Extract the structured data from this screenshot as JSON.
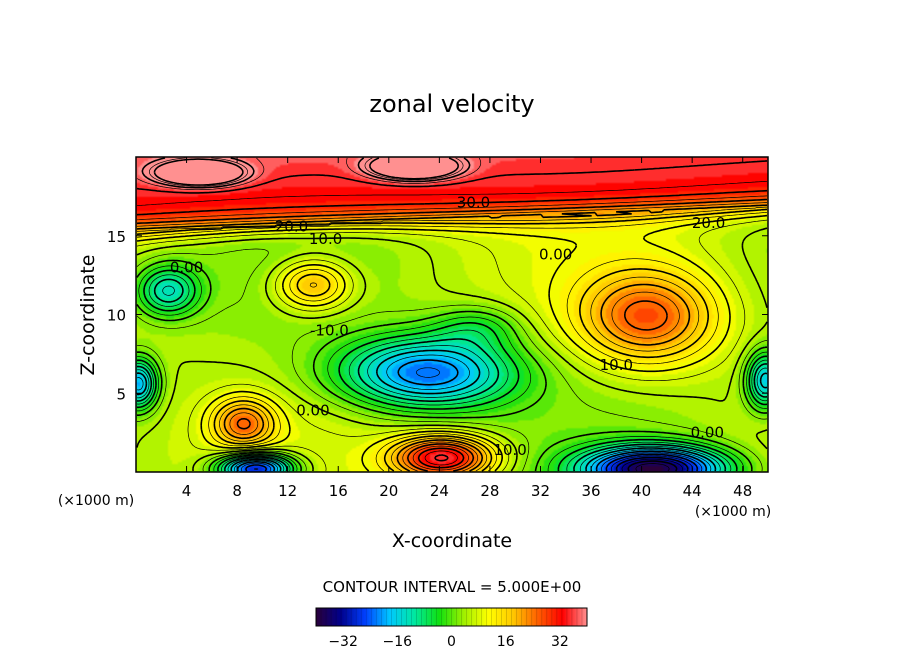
{
  "chart_data": {
    "type": "heatmap",
    "title": "zonal velocity",
    "xlabel": "X-coordinate",
    "ylabel": "Z-coordinate",
    "x_unit": "(×1000 m)",
    "z_unit": "(×1000 m)",
    "xlim": [
      0,
      50
    ],
    "zlim": [
      0,
      20
    ],
    "x_ticks": [
      4,
      8,
      12,
      16,
      20,
      24,
      28,
      32,
      36,
      40,
      44,
      48
    ],
    "z_ticks": [
      5,
      10,
      15
    ],
    "contour_interval_text": "CONTOUR INTERVAL = 5.000E+00",
    "contour_interval": 5.0,
    "colorbar": {
      "range": [
        -40,
        40
      ],
      "ticks": [
        -32,
        -16,
        0,
        16,
        32
      ],
      "colors": [
        "#2a003a",
        "#00008c",
        "#0040ff",
        "#00c8ff",
        "#00e8a0",
        "#10e010",
        "#a0f000",
        "#ffff00",
        "#ffc800",
        "#ff6000",
        "#ff0000",
        "#ff9090"
      ]
    },
    "contour_labels": [
      {
        "text": "30.0",
        "x": 26.7,
        "z": 17.1
      },
      {
        "text": "20.0",
        "x": 12.3,
        "z": 15.6
      },
      {
        "text": "20.0",
        "x": 45.3,
        "z": 15.8
      },
      {
        "text": "10.0",
        "x": 15.0,
        "z": 14.8
      },
      {
        "text": "0.00",
        "x": 4.0,
        "z": 13.0
      },
      {
        "text": "0.00",
        "x": 33.2,
        "z": 13.8
      },
      {
        "text": "-10.0",
        "x": 15.3,
        "z": 9.0
      },
      {
        "text": "10.0",
        "x": 38.0,
        "z": 6.8
      },
      {
        "text": "0.00",
        "x": 14.0,
        "z": 3.9
      },
      {
        "text": "0.00",
        "x": 45.2,
        "z": 2.5
      },
      {
        "text": "10.0",
        "x": 29.6,
        "z": 1.4
      }
    ],
    "features": [
      {
        "kind": "max",
        "x": 40.5,
        "z": 9.8,
        "value": 22
      },
      {
        "kind": "max",
        "x": 14.0,
        "z": 11.9,
        "value": 18
      },
      {
        "kind": "max",
        "x": 8.5,
        "z": 3.1,
        "value": 20
      },
      {
        "kind": "max",
        "x": 24.3,
        "z": 0.9,
        "value": 33
      },
      {
        "kind": "min",
        "x": 23.0,
        "z": 6.3,
        "value": -26
      },
      {
        "kind": "min",
        "x": 41.0,
        "z": 0.2,
        "value": -40
      },
      {
        "kind": "min",
        "x": 9.5,
        "z": 0.2,
        "value": -35
      },
      {
        "kind": "min",
        "x": 0.2,
        "z": 5.6,
        "value": -22
      },
      {
        "kind": "min",
        "x": 49.8,
        "z": 5.8,
        "value": -20
      },
      {
        "kind": "min",
        "x": 2.5,
        "z": 11.5,
        "value": -15
      },
      {
        "kind": "max",
        "x": 5.0,
        "z": 19.0,
        "value": 38
      },
      {
        "kind": "max",
        "x": 22.0,
        "z": 19.4,
        "value": 38
      }
    ]
  }
}
